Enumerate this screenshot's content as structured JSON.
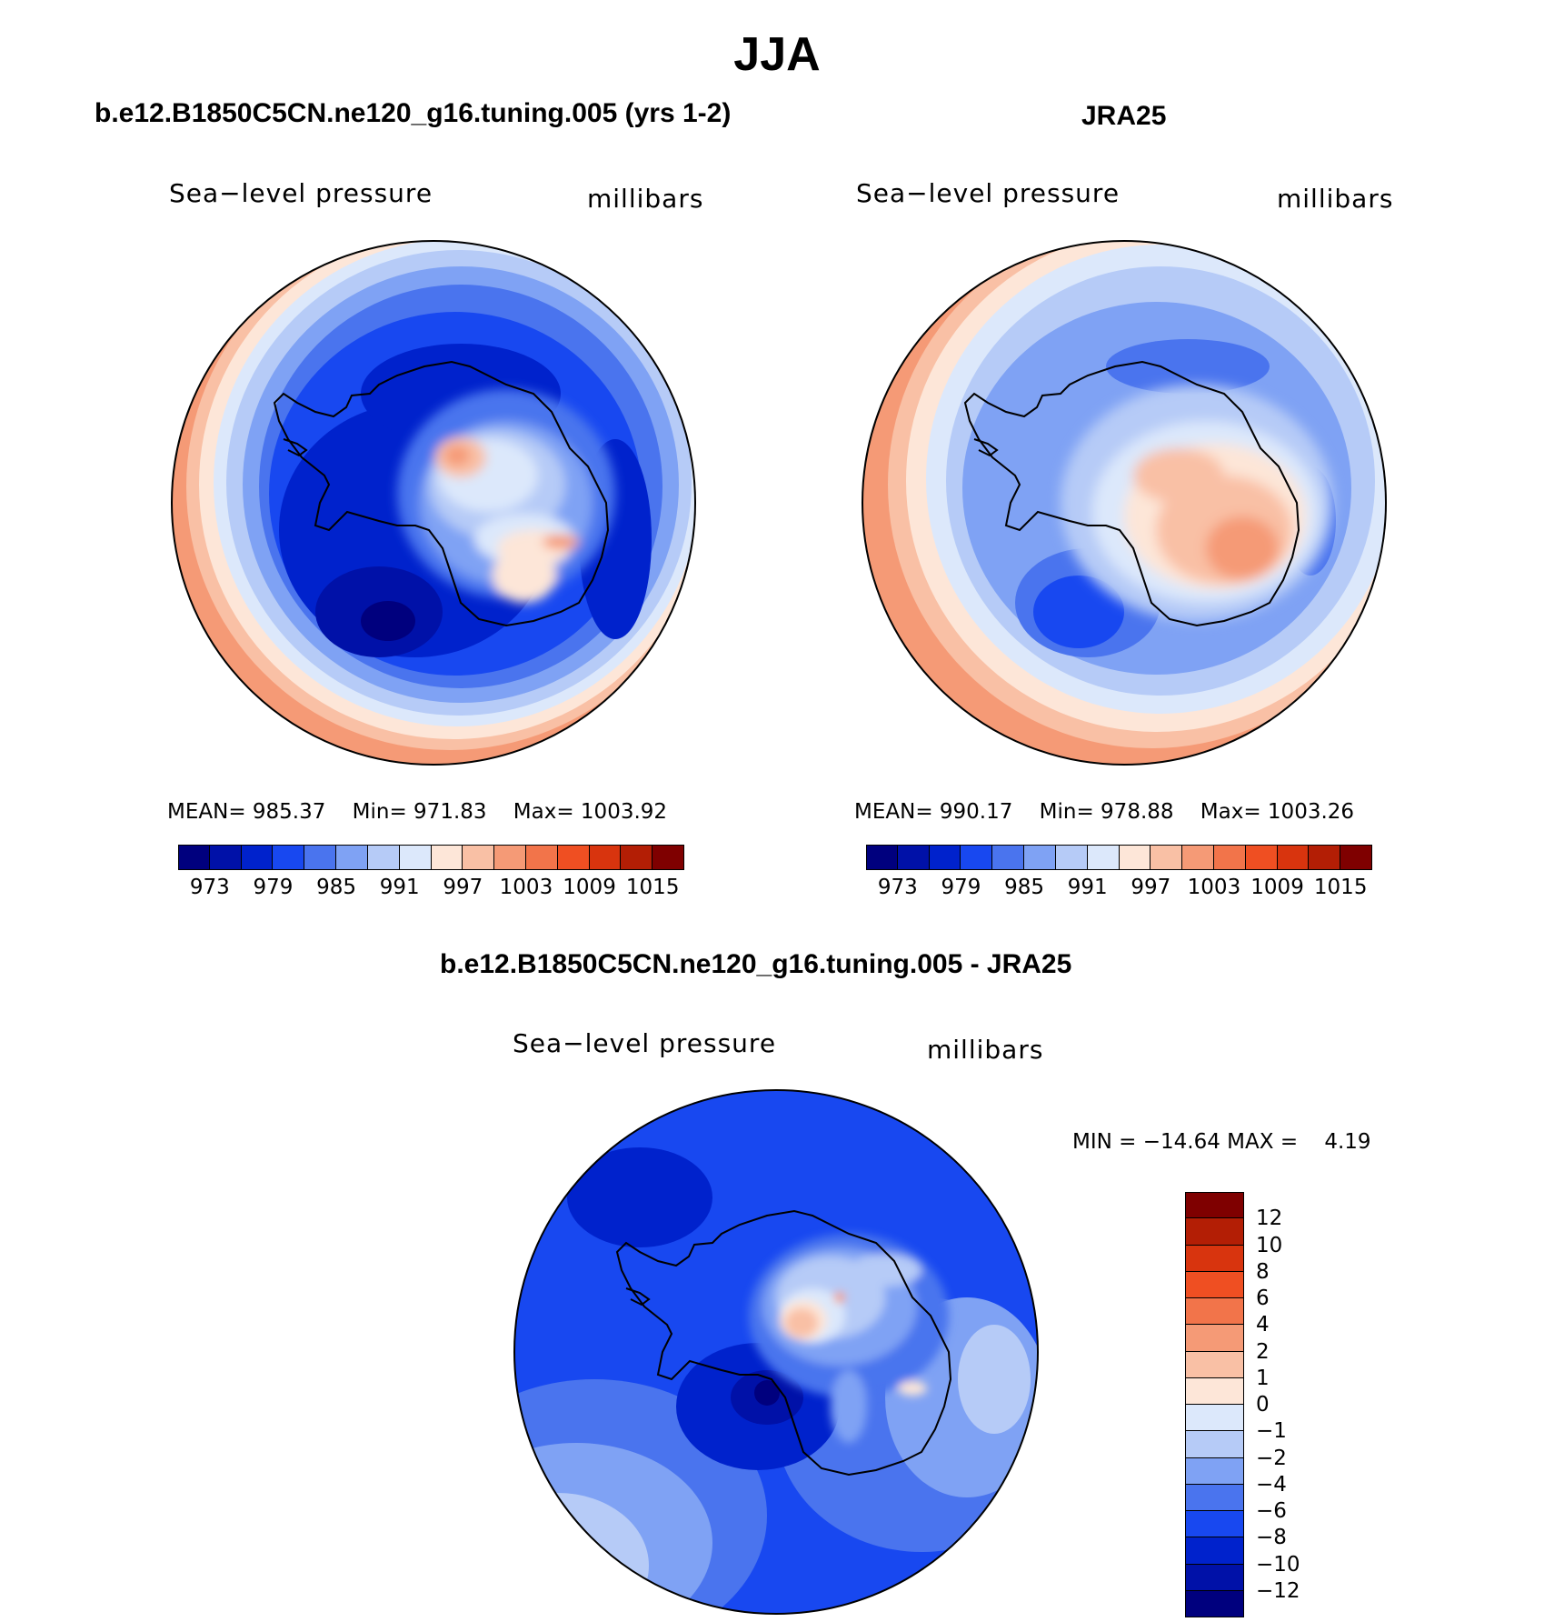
{
  "title": "JJA",
  "panels": {
    "model": {
      "title": "b.e12.B1850C5CN.ne120_g16.tuning.005 (yrs 1-2)",
      "variable": "Sea−level pressure",
      "units": "millibars",
      "stats": {
        "mean_label": "MEAN=",
        "mean": "985.37",
        "min_label": "Min=",
        "min": "971.83",
        "max_label": "Max=",
        "max": "1003.92"
      }
    },
    "obs": {
      "title": "JRA25",
      "variable": "Sea−level pressure",
      "units": "millibars",
      "stats": {
        "mean_label": "MEAN=",
        "mean": "990.17",
        "min_label": "Min=",
        "min": "978.88",
        "max_label": "Max=",
        "max": "1003.26"
      }
    },
    "diff": {
      "title": "b.e12.B1850C5CN.ne120_g16.tuning.005 - JRA25",
      "variable": "Sea−level pressure",
      "units": "millibars",
      "stats": {
        "min_label": "MIN =",
        "min": "−14.64",
        "max_label": "MAX =",
        "max": "4.19"
      }
    }
  },
  "colorbar_abs": {
    "tick_labels": [
      "973",
      "979",
      "985",
      "991",
      "997",
      "1003",
      "1009",
      "1015"
    ],
    "colors": [
      "#00007e",
      "#0011a8",
      "#0022cc",
      "#1848f0",
      "#4a74ee",
      "#7fa2f4",
      "#b6cbf7",
      "#dce8fb",
      "#fde6d8",
      "#f9c0a5",
      "#f59a76",
      "#f2744a",
      "#ef4f22",
      "#d8340e",
      "#b31e05",
      "#7f0000"
    ]
  },
  "colorbar_diff": {
    "tick_labels": [
      "12",
      "10",
      "8",
      "6",
      "4",
      "2",
      "1",
      "0",
      "−1",
      "−2",
      "−4",
      "−6",
      "−8",
      "−10",
      "−12"
    ],
    "colors": [
      "#7f0000",
      "#b31e05",
      "#d8340e",
      "#ef4f22",
      "#f2744a",
      "#f59a76",
      "#f9c0a5",
      "#fde6d8",
      "#dce8fb",
      "#b6cbf7",
      "#7fa2f4",
      "#4a74ee",
      "#1848f0",
      "#0022cc",
      "#0011a8",
      "#00007e"
    ]
  },
  "map_legend": {
    "projection": "south polar stereographic",
    "region": "Antarctica"
  }
}
